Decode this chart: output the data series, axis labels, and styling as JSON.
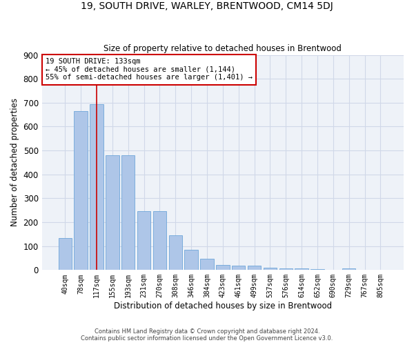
{
  "title_line1": "19, SOUTH DRIVE, WARLEY, BRENTWOOD, CM14 5DJ",
  "title_line2": "Size of property relative to detached houses in Brentwood",
  "xlabel": "Distribution of detached houses by size in Brentwood",
  "ylabel": "Number of detached properties",
  "bar_values": [
    135,
    665,
    695,
    480,
    480,
    245,
    245,
    145,
    85,
    48,
    22,
    18,
    18,
    10,
    8,
    8,
    3,
    0,
    7,
    0,
    0
  ],
  "categories": [
    "40sqm",
    "78sqm",
    "117sqm",
    "155sqm",
    "193sqm",
    "231sqm",
    "270sqm",
    "308sqm",
    "346sqm",
    "384sqm",
    "423sqm",
    "461sqm",
    "499sqm",
    "537sqm",
    "576sqm",
    "614sqm",
    "652sqm",
    "690sqm",
    "729sqm",
    "767sqm",
    "805sqm"
  ],
  "bar_color": "#AEC6E8",
  "bar_edge_color": "#5B9BD5",
  "annotation_line1": "19 SOUTH DRIVE: 133sqm",
  "annotation_line2": "← 45% of detached houses are smaller (1,144)",
  "annotation_line3": "55% of semi-detached houses are larger (1,401) →",
  "annotation_box_color": "#ffffff",
  "annotation_border_color": "#cc0000",
  "property_line_color": "#cc0000",
  "prop_bar_index": 2,
  "ylim": [
    0,
    900
  ],
  "yticks": [
    0,
    100,
    200,
    300,
    400,
    500,
    600,
    700,
    800,
    900
  ],
  "grid_color": "#d0d8e8",
  "bg_color": "#eef2f8",
  "footer_line1": "Contains HM Land Registry data © Crown copyright and database right 2024.",
  "footer_line2": "Contains public sector information licensed under the Open Government Licence v3.0."
}
